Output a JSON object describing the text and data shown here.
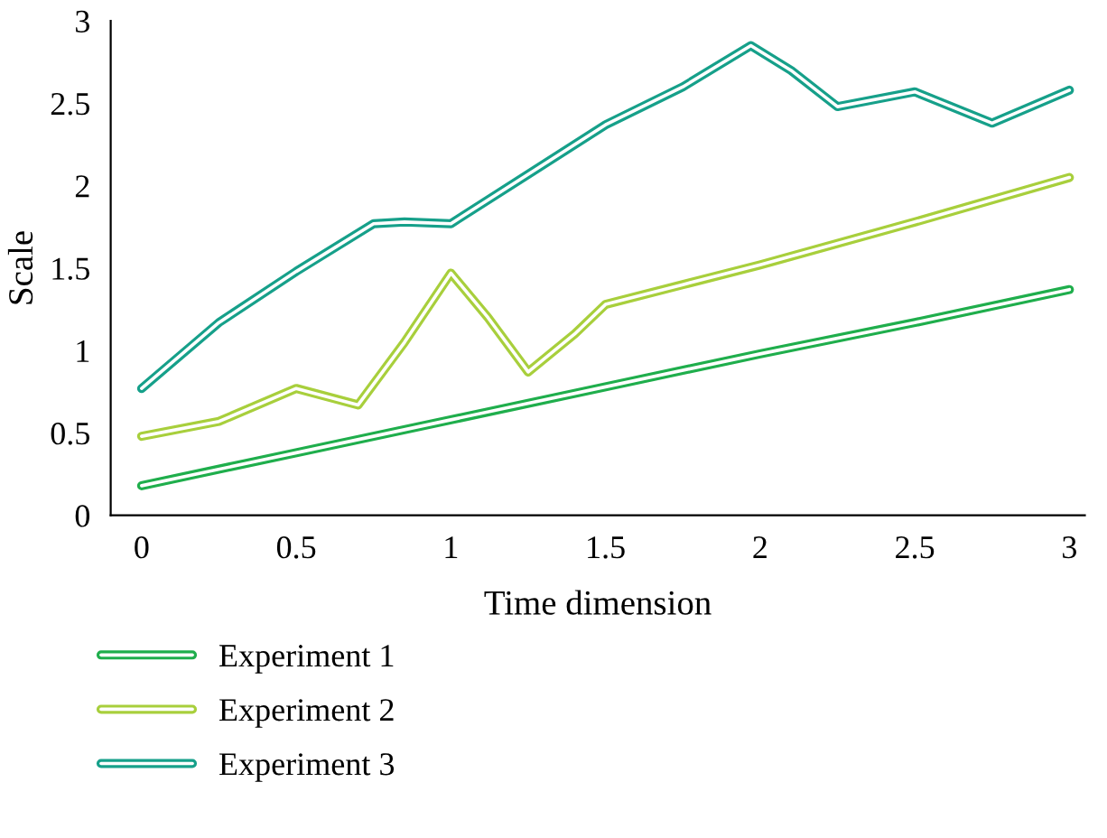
{
  "chart_data": {
    "type": "line",
    "xlabel": "Time dimension",
    "ylabel": "Scale",
    "xlim": [
      -0.1,
      3.05
    ],
    "ylim": [
      0,
      3
    ],
    "xticks": [
      0,
      0.5,
      1,
      1.5,
      2,
      2.5,
      3
    ],
    "yticks": [
      0,
      0.5,
      1,
      1.5,
      2,
      2.5,
      3
    ],
    "grid": false,
    "legend": "bottom",
    "marker": "none",
    "line_style": "solid",
    "series": [
      {
        "name": "Experiment 1",
        "color": "#1fae4c",
        "x": [
          0,
          0.5,
          1,
          1.5,
          2,
          2.5,
          3
        ],
        "values": [
          0.18,
          0.38,
          0.58,
          0.78,
          0.98,
          1.17,
          1.37
        ]
      },
      {
        "name": "Experiment 2",
        "color": "#a8cf3c",
        "x": [
          0,
          0.25,
          0.5,
          0.7,
          0.85,
          1,
          1.12,
          1.25,
          1.4,
          1.5,
          1.75,
          2,
          2.5,
          3
        ],
        "values": [
          0.48,
          0.57,
          0.77,
          0.67,
          1.05,
          1.47,
          1.2,
          0.87,
          1.1,
          1.28,
          1.4,
          1.52,
          1.78,
          2.05
        ]
      },
      {
        "name": "Experiment 3",
        "color": "#16a08a",
        "x": [
          0,
          0.25,
          0.5,
          0.75,
          0.85,
          1,
          1.25,
          1.5,
          1.75,
          1.97,
          2.1,
          2.25,
          2.5,
          2.75,
          3
        ],
        "values": [
          0.77,
          1.17,
          1.48,
          1.77,
          1.78,
          1.77,
          2.07,
          2.37,
          2.6,
          2.85,
          2.7,
          2.48,
          2.57,
          2.38,
          2.58
        ]
      }
    ]
  }
}
